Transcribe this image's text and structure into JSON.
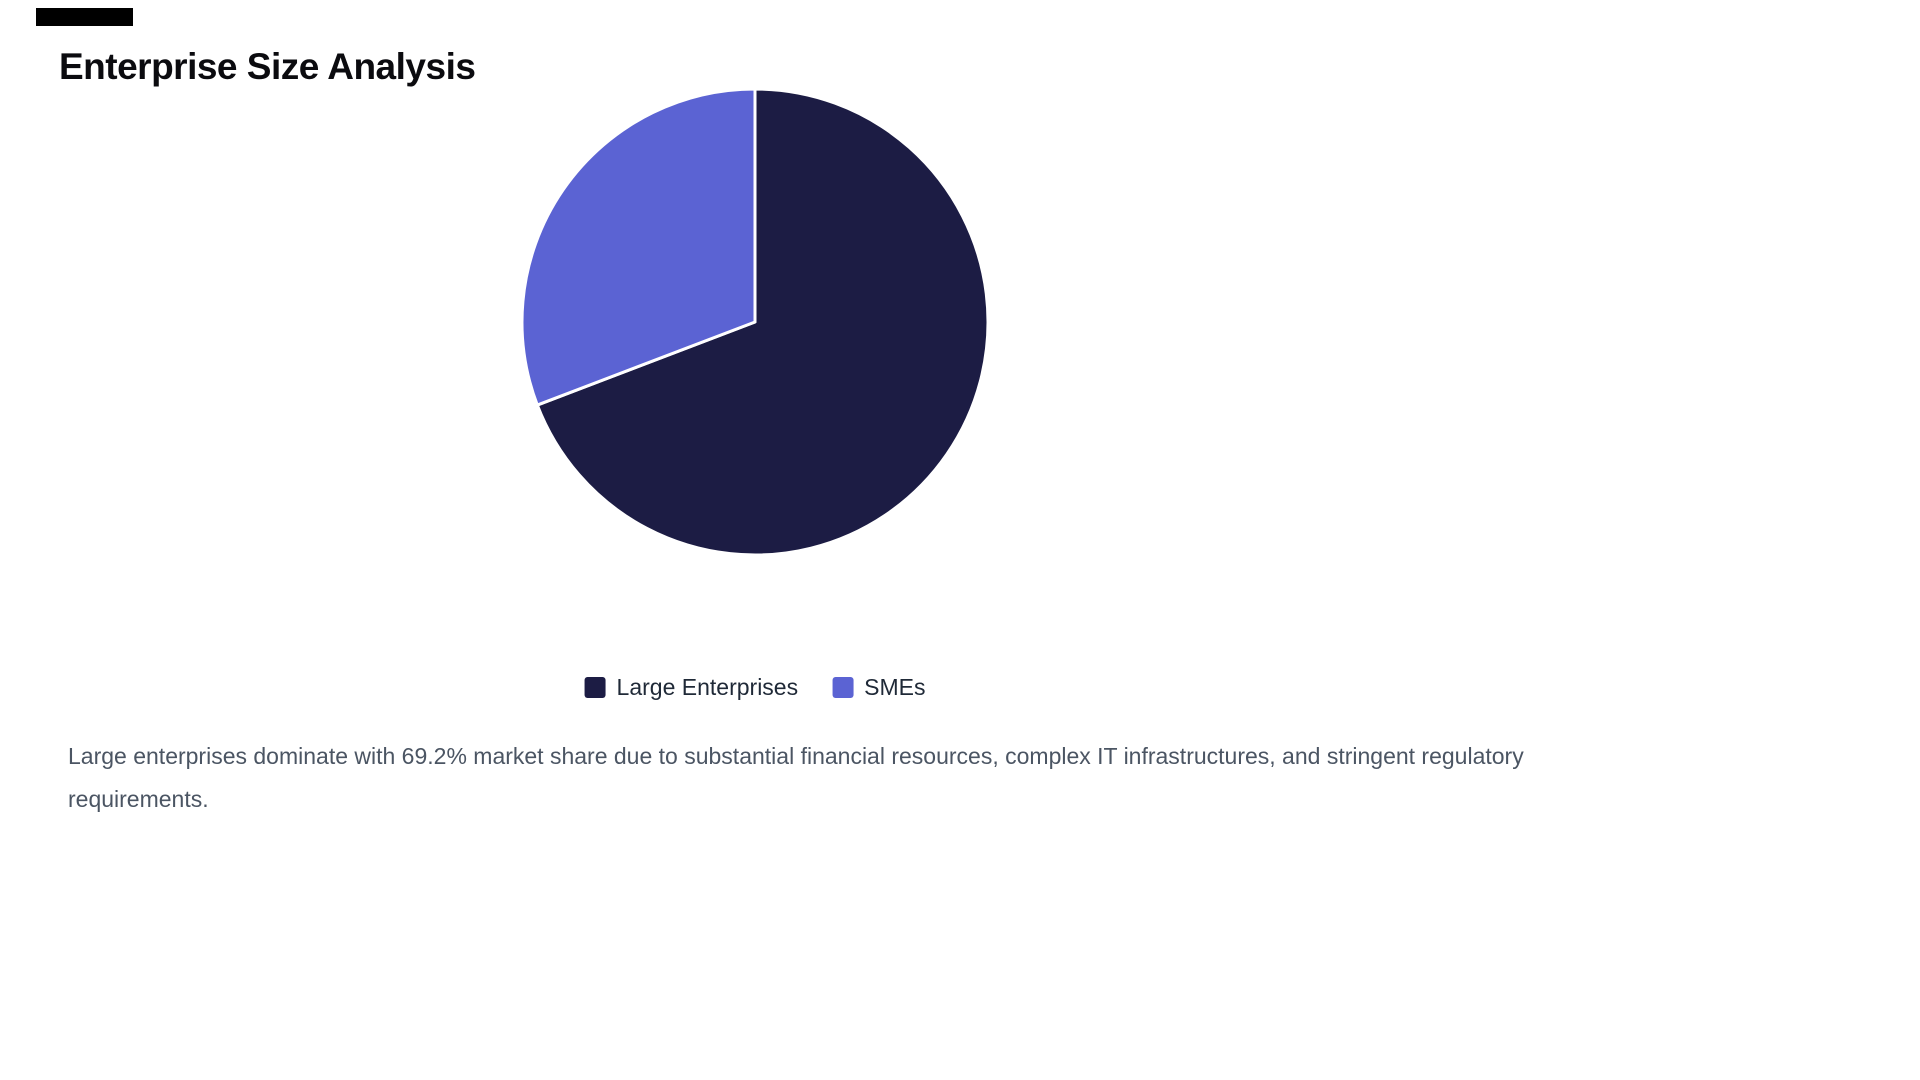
{
  "title": "Enterprise Size Analysis",
  "chart_data": {
    "type": "pie",
    "title": "Enterprise Size Analysis",
    "slices": [
      {
        "label": "Large Enterprises",
        "value": 69.2,
        "color": "#1c1c44"
      },
      {
        "label": "SMEs",
        "value": 30.8,
        "color": "#5b63d3"
      }
    ],
    "start_angle_deg": 0,
    "direction": "clockwise",
    "legend_position": "bottom",
    "separator_color": "#ffffff"
  },
  "legend": {
    "items": [
      {
        "label": "Large Enterprises",
        "color": "#1c1c44"
      },
      {
        "label": "SMEs",
        "color": "#5b63d3"
      }
    ]
  },
  "caption": "Large enterprises dominate with 69.2% market share due to substantial financial resources, complex IT infrastructures, and stringent regulatory requirements."
}
